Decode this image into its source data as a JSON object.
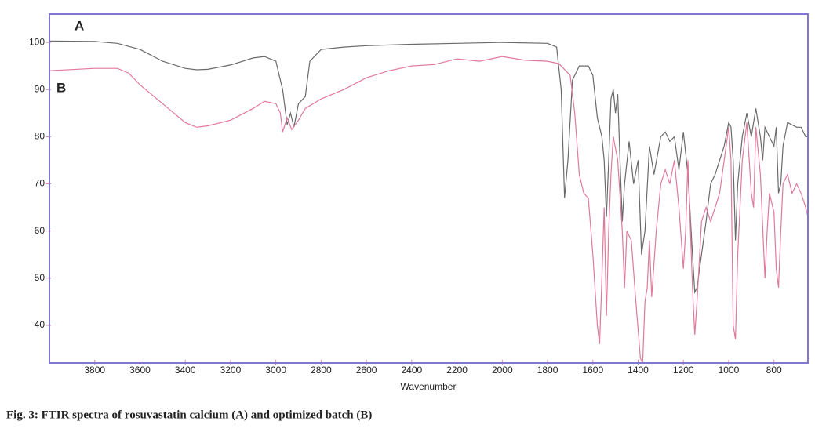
{
  "chart_data": {
    "type": "line",
    "caption": "Fig. 3: FTIR spectra of rosuvastatin calcium (A) and optimized batch (B)",
    "xlabel": "Wavenumber",
    "annotations": [
      "A",
      "B"
    ],
    "xlim": [
      4000,
      650
    ],
    "ylim": [
      32,
      106
    ],
    "xticks": [
      3800,
      3600,
      3400,
      3200,
      3000,
      2800,
      2600,
      2400,
      2200,
      2000,
      1800,
      1600,
      1400,
      1200,
      1000,
      800
    ],
    "yticks": [
      40,
      50,
      60,
      70,
      80,
      90,
      100
    ],
    "frame_color": "#8078d0",
    "series": [
      {
        "name": "A",
        "color": "#6a6a6a",
        "x": [
          4000,
          3800,
          3700,
          3600,
          3500,
          3400,
          3350,
          3300,
          3200,
          3100,
          3050,
          3000,
          2970,
          2950,
          2935,
          2920,
          2900,
          2870,
          2850,
          2800,
          2700,
          2600,
          2400,
          2200,
          2000,
          1800,
          1760,
          1740,
          1725,
          1710,
          1690,
          1660,
          1620,
          1600,
          1580,
          1560,
          1550,
          1540,
          1530,
          1520,
          1510,
          1500,
          1490,
          1480,
          1470,
          1460,
          1440,
          1420,
          1400,
          1385,
          1370,
          1350,
          1330,
          1300,
          1280,
          1260,
          1240,
          1220,
          1200,
          1180,
          1160,
          1150,
          1140,
          1120,
          1100,
          1080,
          1060,
          1040,
          1020,
          1000,
          990,
          980,
          970,
          960,
          940,
          920,
          900,
          880,
          860,
          850,
          840,
          820,
          800,
          790,
          780,
          770,
          760,
          740,
          700,
          680,
          660,
          650
        ],
        "values": [
          100.3,
          100.2,
          99.8,
          98.5,
          96,
          94.5,
          94.2,
          94.3,
          95.2,
          96.7,
          97,
          96,
          90,
          82.5,
          85,
          82,
          87,
          88.5,
          96,
          98.5,
          99,
          99.3,
          99.6,
          99.8,
          100,
          99.8,
          99,
          90,
          67,
          75,
          92,
          95,
          95,
          93,
          84,
          80,
          75,
          63,
          75,
          88,
          90,
          85,
          89,
          75,
          62,
          70,
          79,
          70,
          75,
          55,
          60,
          78,
          72,
          80,
          81,
          79,
          80,
          73,
          81,
          72,
          55,
          47,
          48,
          55,
          62,
          70,
          72,
          75,
          78,
          83,
          82,
          75,
          58,
          70,
          80,
          85,
          80,
          86,
          80,
          75,
          82,
          80,
          78,
          82,
          68,
          70,
          78,
          83,
          82,
          82,
          80,
          80
        ]
      },
      {
        "name": "B",
        "color": "#e07a9a",
        "x": [
          4000,
          3800,
          3700,
          3650,
          3600,
          3500,
          3400,
          3350,
          3300,
          3200,
          3100,
          3050,
          3000,
          2980,
          2970,
          2950,
          2930,
          2900,
          2870,
          2800,
          2700,
          2600,
          2500,
          2400,
          2300,
          2200,
          2100,
          2000,
          1900,
          1800,
          1750,
          1700,
          1680,
          1660,
          1640,
          1620,
          1600,
          1580,
          1570,
          1560,
          1550,
          1540,
          1530,
          1520,
          1510,
          1490,
          1470,
          1460,
          1450,
          1430,
          1410,
          1390,
          1380,
          1370,
          1360,
          1350,
          1340,
          1320,
          1300,
          1280,
          1260,
          1240,
          1220,
          1200,
          1190,
          1180,
          1160,
          1150,
          1140,
          1120,
          1100,
          1080,
          1060,
          1040,
          1020,
          1000,
          990,
          980,
          970,
          960,
          940,
          920,
          900,
          890,
          880,
          860,
          840,
          830,
          820,
          800,
          790,
          780,
          770,
          760,
          740,
          720,
          700,
          680,
          660,
          650
        ],
        "values": [
          94,
          94.5,
          94.5,
          93.5,
          91,
          87,
          83,
          82,
          82.3,
          83.5,
          86,
          87.5,
          87,
          85,
          81,
          84,
          81.5,
          83.5,
          86,
          88,
          90,
          92.5,
          94,
          95,
          95.3,
          96.5,
          96,
          97,
          96.2,
          96,
          95.5,
          93,
          85,
          72,
          68,
          67,
          55,
          40,
          36,
          50,
          65,
          42,
          60,
          72,
          80,
          75,
          60,
          48,
          60,
          58,
          45,
          33,
          32,
          45,
          48,
          58,
          46,
          60,
          70,
          73,
          70,
          75,
          65,
          52,
          60,
          75,
          48,
          38,
          45,
          62,
          65,
          62,
          65,
          68,
          75,
          82,
          75,
          40,
          37,
          55,
          75,
          83,
          68,
          65,
          82,
          72,
          50,
          60,
          68,
          64,
          52,
          48,
          60,
          70,
          72,
          68,
          70,
          68,
          65,
          63
        ]
      }
    ]
  }
}
